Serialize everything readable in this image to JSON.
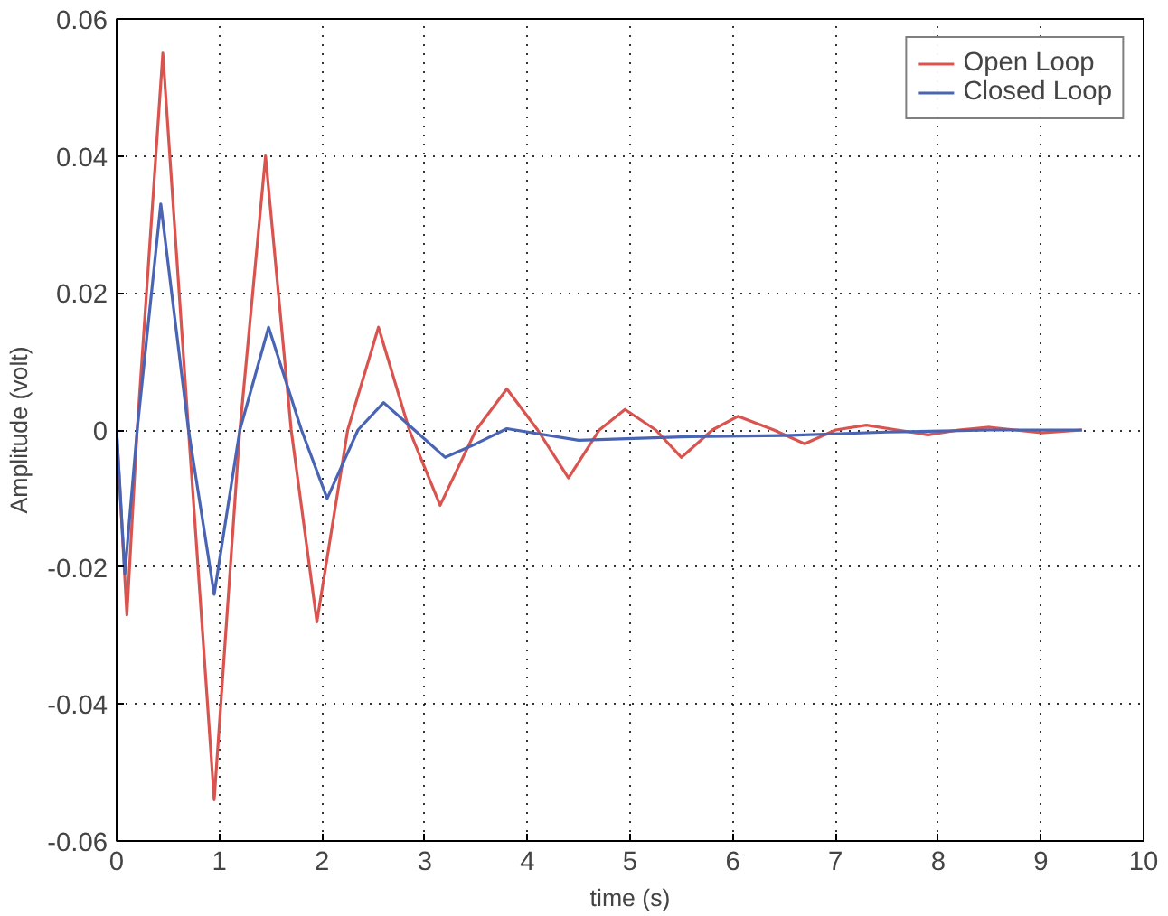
{
  "chart_data": {
    "type": "line",
    "xlabel": "time (s)",
    "ylabel": "Amplitude (volt)",
    "xlim": [
      0,
      10
    ],
    "ylim": [
      -0.06,
      0.06
    ],
    "xticks": [
      0,
      1,
      2,
      3,
      4,
      5,
      6,
      7,
      8,
      9,
      10
    ],
    "yticks": [
      -0.06,
      -0.04,
      -0.02,
      0,
      0.02,
      0.04,
      0.06
    ],
    "grid": true,
    "legend": "top right",
    "line_style": "solid",
    "marker": "none",
    "series": [
      {
        "name": "Open Loop",
        "color": "#d9544f",
        "x": [
          0,
          0.1,
          0.2,
          0.45,
          0.7,
          0.95,
          1.2,
          1.45,
          1.7,
          1.95,
          2.25,
          2.55,
          2.85,
          3.15,
          3.5,
          3.8,
          4.1,
          4.4,
          4.7,
          4.95,
          5.25,
          5.5,
          5.8,
          6.05,
          6.4,
          6.7,
          7.0,
          7.3,
          7.6,
          7.9,
          8.2,
          8.5,
          8.75,
          9.0,
          9.4
        ],
        "values": [
          0,
          -0.027,
          0,
          0.055,
          0,
          -0.054,
          0,
          0.04,
          0,
          -0.028,
          0,
          0.015,
          0,
          -0.011,
          0,
          0.006,
          0,
          -0.007,
          0,
          0.003,
          0,
          -0.004,
          0,
          0.002,
          0,
          -0.002,
          0,
          0.0007,
          0,
          -0.0007,
          0,
          0.0004,
          0,
          -0.0004,
          0
        ]
      },
      {
        "name": "Closed Loop",
        "color": "#4a64b4",
        "x": [
          0,
          0.08,
          0.2,
          0.43,
          0.7,
          0.95,
          1.2,
          1.48,
          1.8,
          2.05,
          2.35,
          2.6,
          2.9,
          3.2,
          3.5,
          3.8,
          4.5,
          5.5,
          6.5,
          7.5,
          8.5,
          9.4
        ],
        "values": [
          0,
          -0.021,
          0,
          0.033,
          0,
          -0.024,
          0,
          0.015,
          0,
          -0.01,
          0,
          0.004,
          0,
          -0.004,
          -0.002,
          0.0002,
          -0.0015,
          -0.001,
          -0.0008,
          -0.0003,
          0,
          0
        ]
      }
    ]
  }
}
